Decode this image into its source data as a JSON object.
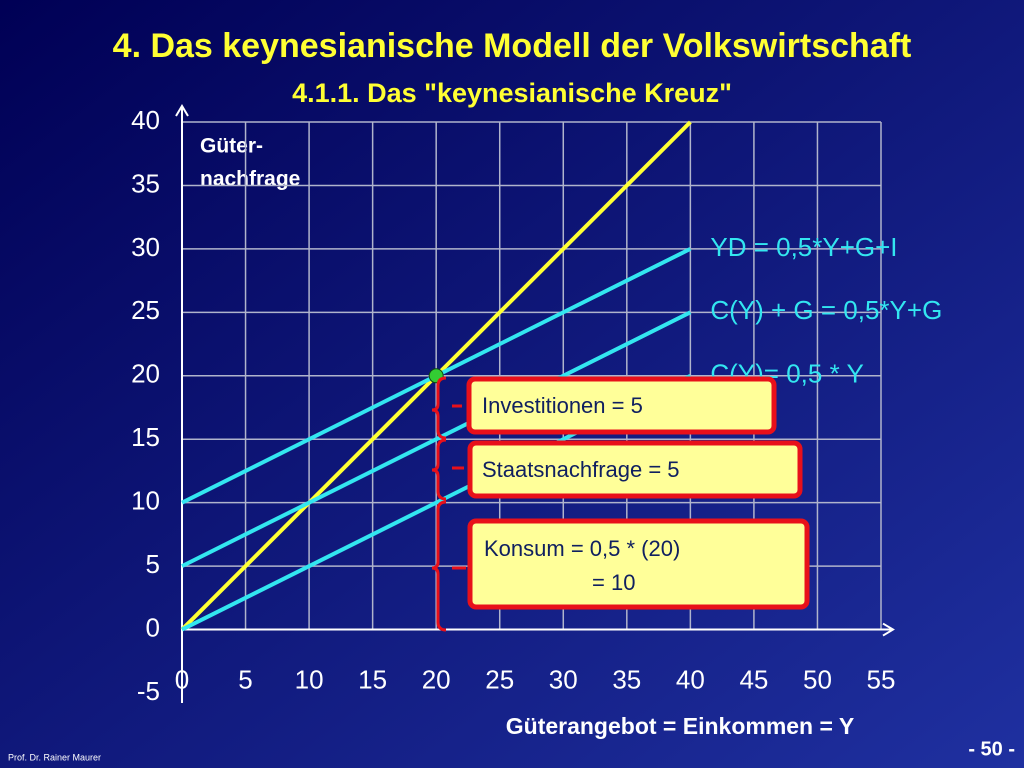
{
  "chart_data": {
    "type": "line",
    "title": "4. Das keynesianische Modell der Volkswirtschaft",
    "subtitle": "4.1.1. Das \"keynesianische Kreuz\"",
    "ylabel": [
      "Güter-",
      "nachfrage"
    ],
    "xlabel": "Güterangebot = Einkommen = Y",
    "x": [
      0,
      40
    ],
    "series": [
      {
        "color": "#ffff33",
        "values": [
          0,
          40
        ]
      },
      {
        "name": "YD = 0,5*Y+G+I",
        "color": "#33e6f0",
        "values": [
          10,
          30
        ]
      },
      {
        "name": "C(Y) + G = 0,5*Y+G",
        "color": "#33e6f0",
        "values": [
          5,
          25
        ]
      },
      {
        "name": "C(Y)= 0,5 * Y",
        "color": "#33e6f0",
        "values": [
          0,
          20
        ]
      }
    ],
    "point": {
      "x": 20,
      "y": 20,
      "color": "#33cc33"
    },
    "annotations": [
      {
        "lines": [
          "Investitionen = 5"
        ]
      },
      {
        "lines": [
          "Staatsnachfrage = 5"
        ]
      },
      {
        "lines": [
          "Konsum = 0,5 * (20)",
          "= 10"
        ]
      }
    ],
    "xlim": [
      0,
      55
    ],
    "xticks": [
      0,
      5,
      10,
      15,
      20,
      25,
      30,
      35,
      40,
      45,
      50,
      55
    ],
    "ylim": [
      -5,
      40
    ],
    "yticks": [
      -5,
      0,
      5,
      10,
      15,
      20,
      25,
      30,
      35,
      40
    ],
    "grid": true,
    "footer": "Prof. Dr. Rainer Maurer",
    "page": "- 50 -"
  }
}
